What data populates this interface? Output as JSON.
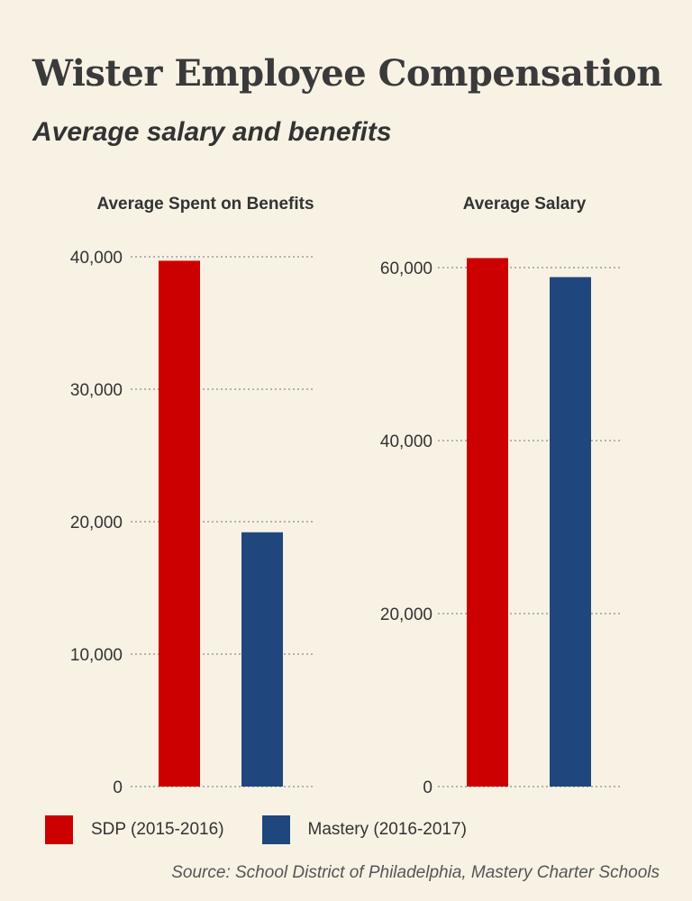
{
  "header": {
    "title": "Wister Employee Compensation",
    "subtitle": "Average salary and benefits"
  },
  "colors": {
    "sdp": "#cc0000",
    "mastery": "#1f477e",
    "background": "#f8f2e5"
  },
  "legend": [
    {
      "label": "SDP (2015-2016)",
      "color": "#cc0000"
    },
    {
      "label": "Mastery (2016-2017)",
      "color": "#1f477e"
    }
  ],
  "source": "Source: School District of Philadelphia, Mastery Charter Schools",
  "chart_data": [
    {
      "type": "bar",
      "title": "Average Spent on Benefits",
      "categories": [
        "SDP (2015-2016)",
        "Mastery (2016-2017)"
      ],
      "values": [
        39700,
        19200
      ],
      "colors": [
        "#cc0000",
        "#1f477e"
      ],
      "yticks": [
        0,
        10000,
        20000,
        30000,
        40000
      ],
      "ytick_labels": [
        "0",
        "10,000",
        "20,000",
        "30,000",
        "40,000"
      ],
      "ylim": [
        0,
        40000
      ],
      "grid": true
    },
    {
      "type": "bar",
      "title": "Average Salary",
      "categories": [
        "SDP (2015-2016)",
        "Mastery (2016-2017)"
      ],
      "values": [
        61100,
        58900
      ],
      "colors": [
        "#cc0000",
        "#1f477e"
      ],
      "yticks": [
        0,
        20000,
        40000,
        60000
      ],
      "ytick_labels": [
        "0",
        "20,000",
        "40,000",
        "60,000"
      ],
      "ylim": [
        0,
        60000
      ],
      "grid": true
    }
  ]
}
